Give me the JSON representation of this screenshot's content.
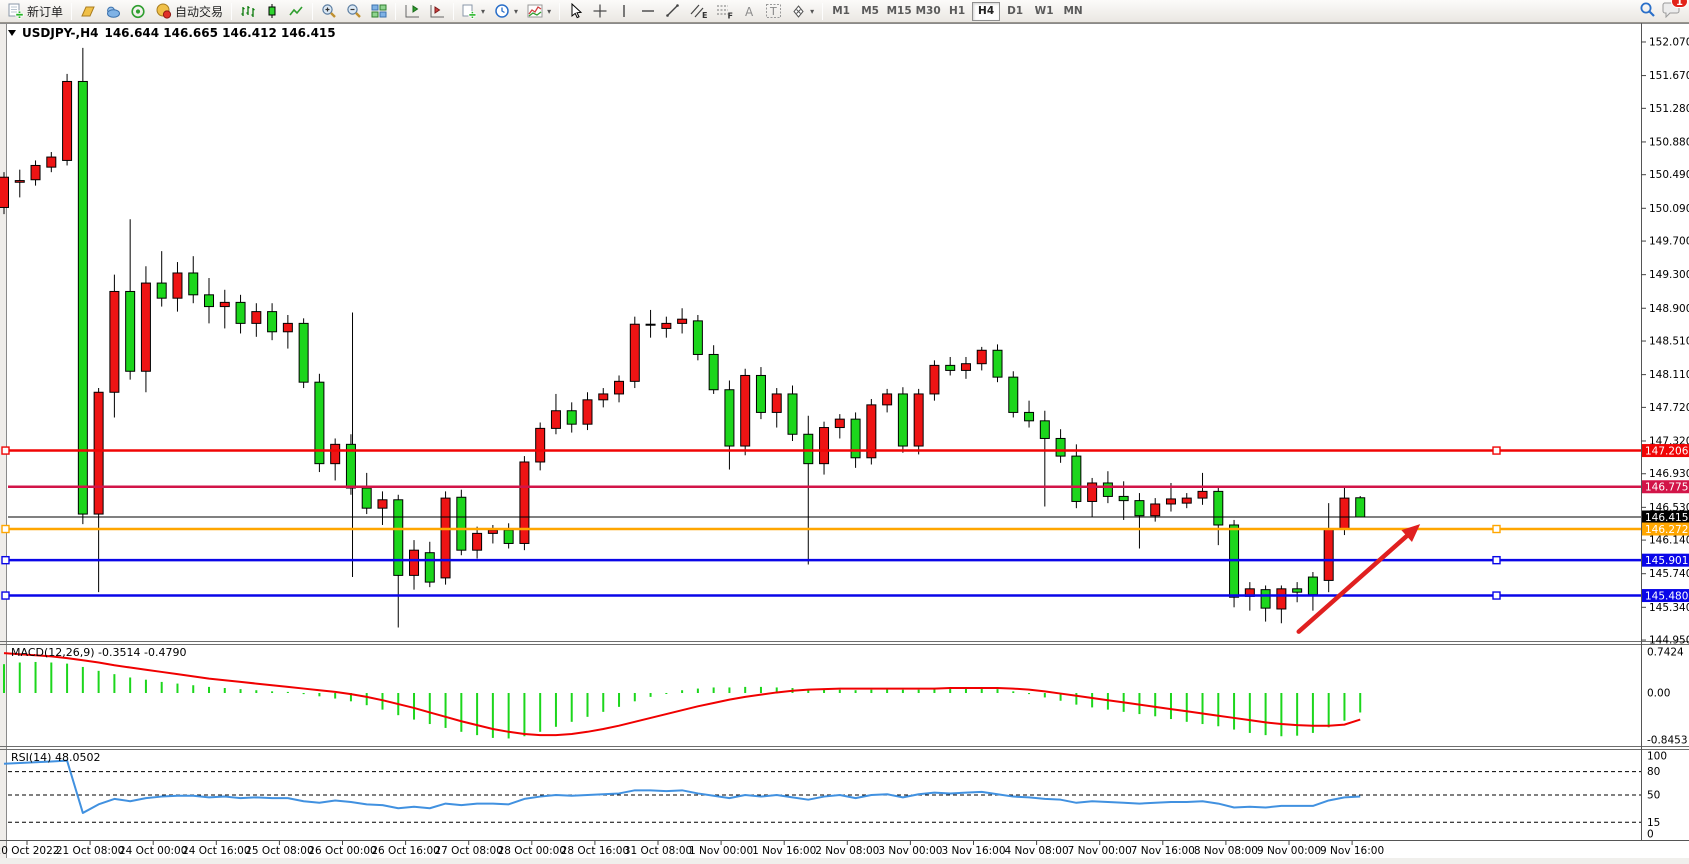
{
  "toolbar": {
    "new_order": "新订单",
    "auto_trading": "自动交易",
    "timeframes": [
      "M1",
      "M5",
      "M15",
      "M30",
      "H1",
      "H4",
      "D1",
      "W1",
      "MN"
    ],
    "active_timeframe": "H4",
    "notification_count": "1",
    "glyphs": {
      "text_tool": "A",
      "text_label_tool": "T",
      "channel_tool": "E",
      "fibonacci_tool": "F"
    }
  },
  "quote_bar": {
    "symbol": "USDJPY-,H4",
    "ohlc": "146.644 146.665 146.412 146.415"
  },
  "indicators": {
    "macd_label": "MACD(12,26,9)",
    "macd_values": "-0.3514 -0.4790",
    "rsi_label": "RSI(14)",
    "rsi_value": "48.0502"
  },
  "chart_data": [
    {
      "type": "candlestick",
      "title": "USDJPY-,H4",
      "timeframe": "H4",
      "current_ohlc": {
        "open": 146.644,
        "high": 146.665,
        "low": 146.412,
        "close": 146.415
      },
      "ylim": [
        144.95,
        152.07
      ],
      "y_ticks": [
        "152.070",
        "151.670",
        "151.280",
        "150.880",
        "150.490",
        "150.090",
        "149.700",
        "149.300",
        "148.900",
        "148.510",
        "148.110",
        "147.720",
        "147.320",
        "146.930",
        "146.530",
        "146.140",
        "145.740",
        "145.340",
        "144.950"
      ],
      "x_tick_labels": [
        "20 Oct 2022",
        "21 Oct 08:00",
        "24 Oct 00:00",
        "24 Oct 16:00",
        "25 Oct 08:00",
        "26 Oct 00:00",
        "26 Oct 16:00",
        "27 Oct 08:00",
        "28 Oct 00:00",
        "28 Oct 16:00",
        "31 Oct 08:00",
        "1 Nov 00:00",
        "1 Nov 16:00",
        "2 Nov 08:00",
        "3 Nov 00:00",
        "3 Nov 16:00",
        "4 Nov 08:00",
        "7 Nov 00:00",
        "7 Nov 16:00",
        "8 Nov 08:00",
        "9 Nov 00:00",
        "9 Nov 16:00"
      ],
      "up_color": "#ee1414",
      "down_color": "#1cd61c",
      "candles": [
        [
          150.1,
          150.52,
          150.02,
          150.46
        ],
        [
          150.4,
          150.55,
          150.22,
          150.42
        ],
        [
          150.43,
          150.66,
          150.36,
          150.6
        ],
        [
          150.58,
          150.76,
          150.52,
          150.7
        ],
        [
          150.66,
          151.69,
          150.6,
          151.6
        ],
        [
          151.6,
          152.0,
          146.33,
          146.45
        ],
        [
          146.45,
          147.95,
          145.52,
          147.9
        ],
        [
          147.9,
          149.3,
          147.6,
          149.1
        ],
        [
          149.1,
          149.96,
          148.05,
          148.15
        ],
        [
          148.15,
          149.4,
          147.9,
          149.2
        ],
        [
          149.2,
          149.58,
          148.92,
          149.02
        ],
        [
          149.02,
          149.45,
          148.86,
          149.32
        ],
        [
          149.32,
          149.52,
          148.96,
          149.06
        ],
        [
          149.06,
          149.26,
          148.72,
          148.92
        ],
        [
          148.92,
          149.12,
          148.66,
          148.97
        ],
        [
          148.97,
          149.06,
          148.6,
          148.72
        ],
        [
          148.72,
          148.96,
          148.56,
          148.86
        ],
        [
          148.86,
          148.96,
          148.52,
          148.62
        ],
        [
          148.62,
          148.82,
          148.42,
          148.72
        ],
        [
          148.72,
          148.78,
          147.95,
          148.02
        ],
        [
          148.02,
          148.12,
          146.95,
          147.05
        ],
        [
          147.05,
          147.35,
          146.85,
          147.28
        ],
        [
          147.28,
          147.4,
          146.68,
          146.76
        ],
        [
          146.76,
          146.94,
          146.45,
          146.52
        ],
        [
          146.52,
          146.72,
          146.32,
          146.62
        ],
        [
          146.62,
          146.68,
          145.1,
          145.72
        ],
        [
          145.72,
          146.14,
          145.55,
          146.02
        ],
        [
          145.99,
          146.12,
          145.58,
          145.64
        ],
        [
          145.69,
          146.72,
          145.61,
          146.64
        ],
        [
          146.65,
          146.74,
          145.96,
          146.02
        ],
        [
          146.02,
          146.3,
          145.92,
          146.22
        ],
        [
          146.22,
          146.32,
          146.1,
          146.26
        ],
        [
          146.26,
          146.34,
          146.04,
          146.1
        ],
        [
          146.1,
          147.14,
          146.02,
          147.07
        ],
        [
          147.07,
          147.54,
          146.97,
          147.47
        ],
        [
          147.47,
          147.88,
          147.4,
          147.68
        ],
        [
          147.68,
          147.78,
          147.42,
          147.52
        ],
        [
          147.52,
          147.9,
          147.45,
          147.81
        ],
        [
          147.81,
          147.95,
          147.72,
          147.88
        ],
        [
          147.88,
          148.1,
          147.78,
          148.03
        ],
        [
          148.03,
          148.8,
          147.95,
          148.71
        ],
        [
          148.71,
          148.88,
          148.55,
          148.7
        ],
        [
          148.66,
          148.8,
          148.55,
          148.72
        ],
        [
          148.72,
          148.9,
          148.6,
          148.77
        ],
        [
          148.75,
          148.82,
          148.28,
          148.35
        ],
        [
          148.35,
          148.46,
          147.88,
          147.93
        ],
        [
          147.93,
          148.04,
          146.98,
          147.26
        ],
        [
          147.26,
          148.18,
          147.15,
          148.1
        ],
        [
          148.1,
          148.2,
          147.58,
          147.66
        ],
        [
          147.66,
          147.95,
          147.48,
          147.88
        ],
        [
          147.88,
          147.98,
          147.32,
          147.4
        ],
        [
          147.4,
          147.62,
          145.85,
          147.05
        ],
        [
          147.05,
          147.55,
          146.92,
          147.48
        ],
        [
          147.48,
          147.64,
          147.35,
          147.58
        ],
        [
          147.58,
          147.66,
          147.0,
          147.12
        ],
        [
          147.12,
          147.82,
          147.04,
          147.75
        ],
        [
          147.75,
          147.94,
          147.66,
          147.88
        ],
        [
          147.88,
          147.96,
          147.18,
          147.26
        ],
        [
          147.26,
          147.94,
          147.16,
          147.88
        ],
        [
          147.88,
          148.28,
          147.8,
          148.22
        ],
        [
          148.22,
          148.32,
          148.1,
          148.16
        ],
        [
          148.16,
          148.32,
          148.06,
          148.24
        ],
        [
          148.24,
          148.44,
          148.16,
          148.4
        ],
        [
          148.4,
          148.47,
          148.02,
          148.08
        ],
        [
          148.08,
          148.15,
          147.6,
          147.66
        ],
        [
          147.66,
          147.8,
          147.48,
          147.56
        ],
        [
          147.56,
          147.68,
          146.54,
          147.35
        ],
        [
          147.35,
          147.46,
          147.06,
          147.14
        ],
        [
          147.14,
          147.28,
          146.52,
          146.6
        ],
        [
          146.6,
          146.88,
          146.42,
          146.82
        ],
        [
          146.82,
          146.96,
          146.58,
          146.66
        ],
        [
          146.66,
          146.84,
          146.38,
          146.61
        ],
        [
          146.61,
          146.7,
          146.04,
          146.43
        ],
        [
          146.43,
          146.64,
          146.36,
          146.57
        ],
        [
          146.57,
          146.82,
          146.48,
          146.63
        ],
        [
          146.58,
          146.7,
          146.52,
          146.64
        ],
        [
          146.64,
          146.94,
          146.56,
          146.72
        ],
        [
          146.72,
          146.78,
          146.08,
          146.32
        ],
        [
          146.32,
          146.38,
          145.34,
          145.46
        ],
        [
          145.47,
          145.64,
          145.3,
          145.56
        ],
        [
          145.55,
          145.6,
          145.17,
          145.33
        ],
        [
          145.32,
          145.6,
          145.15,
          145.56
        ],
        [
          145.56,
          145.64,
          145.4,
          145.52
        ],
        [
          145.7,
          145.76,
          145.3,
          145.49
        ],
        [
          145.66,
          146.58,
          145.52,
          146.27
        ],
        [
          146.27,
          146.78,
          146.2,
          146.64
        ],
        [
          146.644,
          146.665,
          146.412,
          146.415
        ]
      ],
      "hlines": [
        {
          "price": 147.206,
          "label": "147.206",
          "color": "#f00505",
          "anchors": true
        },
        {
          "price": 146.775,
          "label": "146.775",
          "color": "#d21448",
          "anchors": false
        },
        {
          "price": 146.415,
          "label": "146.415",
          "color": "#000000",
          "anchors": false,
          "thin": true
        },
        {
          "price": 146.272,
          "label": "146.272",
          "color": "#ffa600",
          "anchors": true
        },
        {
          "price": 145.901,
          "label": "145.901",
          "color": "#0a06e8",
          "anchors": true
        },
        {
          "price": 145.48,
          "label": "145.480",
          "color": "#0a06e8",
          "anchors": true
        }
      ],
      "vline_object": {
        "bar": 22.1,
        "from_price": 148.85,
        "to_price": 145.7,
        "color": "#000000"
      },
      "arrow_annotation": {
        "from_bar": 82.1,
        "from_price": 145.05,
        "to_bar": 89.8,
        "to_price": 146.33,
        "color": "#e02020"
      }
    },
    {
      "type": "bar",
      "name": "MACD(12,26,9)",
      "values_display": "-0.3514 -0.4790",
      "ylim": [
        -0.8453,
        0.7424
      ],
      "y_ticks": [
        "0.7424",
        "0.00",
        "-0.8453"
      ],
      "histogram_color": "#1cd61c",
      "signal_color": "#f00000",
      "histogram": [
        0.52,
        0.55,
        0.56,
        0.55,
        0.53,
        0.47,
        0.4,
        0.34,
        0.28,
        0.24,
        0.2,
        0.17,
        0.14,
        0.11,
        0.09,
        0.07,
        0.05,
        0.03,
        0.02,
        -0.02,
        -0.06,
        -0.1,
        -0.15,
        -0.22,
        -0.3,
        -0.4,
        -0.48,
        -0.56,
        -0.63,
        -0.7,
        -0.76,
        -0.81,
        -0.82,
        -0.78,
        -0.7,
        -0.61,
        -0.52,
        -0.43,
        -0.34,
        -0.25,
        -0.15,
        -0.07,
        -0.01,
        0.05,
        0.08,
        0.1,
        0.1,
        0.11,
        0.11,
        0.1,
        0.09,
        0.07,
        0.06,
        0.06,
        0.05,
        0.06,
        0.07,
        0.06,
        0.06,
        0.07,
        0.08,
        0.08,
        0.09,
        0.07,
        0.03,
        -0.02,
        -0.08,
        -0.14,
        -0.21,
        -0.26,
        -0.3,
        -0.34,
        -0.38,
        -0.42,
        -0.47,
        -0.52,
        -0.56,
        -0.6,
        -0.66,
        -0.72,
        -0.76,
        -0.78,
        -0.77,
        -0.72,
        -0.62,
        -0.5,
        -0.3514
      ],
      "signal": [
        0.72,
        0.7,
        0.68,
        0.66,
        0.63,
        0.59,
        0.55,
        0.5,
        0.46,
        0.42,
        0.38,
        0.34,
        0.3,
        0.26,
        0.23,
        0.2,
        0.17,
        0.14,
        0.11,
        0.08,
        0.05,
        0.02,
        -0.02,
        -0.07,
        -0.13,
        -0.2,
        -0.27,
        -0.35,
        -0.43,
        -0.51,
        -0.58,
        -0.65,
        -0.7,
        -0.74,
        -0.76,
        -0.76,
        -0.74,
        -0.7,
        -0.65,
        -0.59,
        -0.52,
        -0.45,
        -0.38,
        -0.31,
        -0.24,
        -0.18,
        -0.12,
        -0.07,
        -0.03,
        0.01,
        0.04,
        0.06,
        0.07,
        0.08,
        0.08,
        0.08,
        0.08,
        0.08,
        0.08,
        0.08,
        0.09,
        0.09,
        0.09,
        0.09,
        0.08,
        0.06,
        0.03,
        -0.01,
        -0.05,
        -0.09,
        -0.13,
        -0.17,
        -0.21,
        -0.25,
        -0.29,
        -0.33,
        -0.37,
        -0.41,
        -0.45,
        -0.49,
        -0.53,
        -0.56,
        -0.58,
        -0.59,
        -0.59,
        -0.57,
        -0.479
      ]
    },
    {
      "type": "line",
      "name": "RSI(14)",
      "current_value": "48.0502",
      "ylim": [
        0,
        100
      ],
      "levels": [
        80,
        50,
        15
      ],
      "y_ticks": [
        "100",
        "80",
        "50",
        "15",
        "0"
      ],
      "line_color": "#4191e0",
      "series": [
        90,
        91,
        92,
        93,
        94,
        27,
        38,
        45,
        42,
        46,
        48,
        49,
        49,
        47,
        48,
        46,
        47,
        46,
        46,
        42,
        40,
        43,
        41,
        38,
        37,
        33,
        35,
        33,
        39,
        37,
        39,
        39,
        38,
        45,
        48,
        50,
        49,
        50,
        51,
        52,
        56,
        56,
        55,
        56,
        52,
        49,
        46,
        50,
        48,
        50,
        47,
        44,
        48,
        50,
        46,
        50,
        51,
        47,
        51,
        53,
        52,
        53,
        54,
        51,
        48,
        47,
        45,
        44,
        40,
        42,
        41,
        40,
        39,
        40,
        41,
        41,
        42,
        39,
        34,
        35,
        34,
        36,
        36,
        36,
        43,
        47,
        48.05
      ]
    }
  ]
}
